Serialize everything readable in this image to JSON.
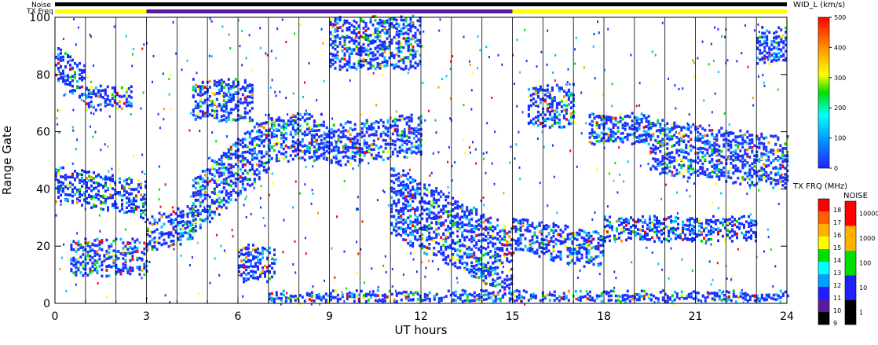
{
  "chart_data": {
    "type": "heatmap",
    "xlabel": "UT hours",
    "ylabel": "Range Gate",
    "xlim": [
      0,
      24
    ],
    "ylim": [
      0,
      100
    ],
    "x_ticks": [
      "0",
      "3",
      "6",
      "9",
      "12",
      "15",
      "18",
      "21",
      "24"
    ],
    "y_ticks": [
      "0",
      "20",
      "40",
      "60",
      "80",
      "100"
    ],
    "x_tick_values": [
      0,
      3,
      6,
      9,
      12,
      15,
      18,
      21,
      24
    ],
    "y_tick_values": [
      0,
      20,
      40,
      60,
      80,
      100
    ],
    "scan_boundaries_ut": [
      1,
      2,
      3,
      4,
      5,
      6,
      7,
      8,
      9,
      10,
      11,
      12,
      13,
      14,
      15,
      16,
      17,
      18,
      19,
      20,
      21,
      22,
      23
    ],
    "top_bars": {
      "noise_label": "Noise",
      "txfreq_label": "TX Freq",
      "txfreq_segments": [
        {
          "start": 0,
          "end": 3,
          "color": "#ffff00"
        },
        {
          "start": 3,
          "end": 15,
          "color": "#5a1aa0"
        },
        {
          "start": 15,
          "end": 24,
          "color": "#ffff00"
        }
      ]
    },
    "bands": [
      {
        "ut": [
          0.0,
          1.0
        ],
        "gate": [
          78,
          90
        ],
        "slope": -8
      },
      {
        "ut": [
          1.0,
          2.5
        ],
        "gate": [
          68,
          76
        ],
        "slope": 0
      },
      {
        "ut": [
          0.0,
          3.0
        ],
        "gate": [
          36,
          48
        ],
        "slope": -6
      },
      {
        "ut": [
          0.5,
          3.0
        ],
        "gate": [
          10,
          22
        ],
        "slope": 0
      },
      {
        "ut": [
          3.0,
          4.5
        ],
        "gate": [
          18,
          30
        ],
        "slope": 4
      },
      {
        "ut": [
          4.5,
          7.0
        ],
        "gate": [
          24,
          44
        ],
        "slope": 22
      },
      {
        "ut": [
          4.5,
          6.5
        ],
        "gate": [
          64,
          78
        ],
        "slope": 0
      },
      {
        "ut": [
          6.0,
          7.2
        ],
        "gate": [
          8,
          20
        ],
        "slope": 0
      },
      {
        "ut": [
          7.0,
          8.8
        ],
        "gate": [
          50,
          66
        ],
        "slope": 0
      },
      {
        "ut": [
          8.8,
          12.0
        ],
        "gate": [
          48,
          62
        ],
        "slope": 4
      },
      {
        "ut": [
          9.0,
          12.0
        ],
        "gate": [
          82,
          100
        ],
        "slope": 0
      },
      {
        "ut": [
          11.0,
          15.0
        ],
        "gate": [
          24,
          48
        ],
        "slope": -22
      },
      {
        "ut": [
          15.0,
          18.0
        ],
        "gate": [
          18,
          30
        ],
        "slope": -6
      },
      {
        "ut": [
          15.5,
          17.0
        ],
        "gate": [
          62,
          76
        ],
        "slope": 0
      },
      {
        "ut": [
          17.5,
          19.5
        ],
        "gate": [
          56,
          66
        ],
        "slope": 0
      },
      {
        "ut": [
          18.0,
          23.0
        ],
        "gate": [
          22,
          30
        ],
        "slope": 0
      },
      {
        "ut": [
          19.5,
          24.0
        ],
        "gate": [
          46,
          64
        ],
        "slope": -6
      },
      {
        "ut": [
          23.0,
          24.0
        ],
        "gate": [
          84,
          96
        ],
        "slope": 0
      },
      {
        "ut": [
          7.0,
          24.0
        ],
        "gate": [
          0,
          4
        ],
        "slope": 0
      }
    ],
    "colorbar_velocity": {
      "title": "WID_L (km/s)",
      "range": [
        0,
        500
      ],
      "ticks": [
        "0",
        "100",
        "200",
        "300",
        "400",
        "500"
      ]
    },
    "colorbar_txfreq": {
      "title": "TX FRQ (MHz)",
      "ticks": [
        "9",
        "10",
        "11",
        "12",
        "13",
        "14",
        "15",
        "16",
        "17",
        "18"
      ],
      "colors": [
        "#000000",
        "#5a1aa0",
        "#2020ff",
        "#00a0ff",
        "#00ffff",
        "#00e000",
        "#ffff00",
        "#ffb000",
        "#ff6000",
        "#ff0000"
      ]
    },
    "colorbar_noise": {
      "title": "NOISE",
      "ticks": [
        "1",
        "10",
        "100",
        "1000",
        "10000"
      ],
      "colors": [
        "#000000",
        "#2020ff",
        "#00e000",
        "#ffb000",
        "#ff0000"
      ]
    },
    "palette": {
      "blue": "#1830ff",
      "cyan": "#00c0ff",
      "green": "#00e000",
      "yellow": "#ffff00",
      "orange": "#ff9000",
      "red": "#ff0000"
    }
  }
}
